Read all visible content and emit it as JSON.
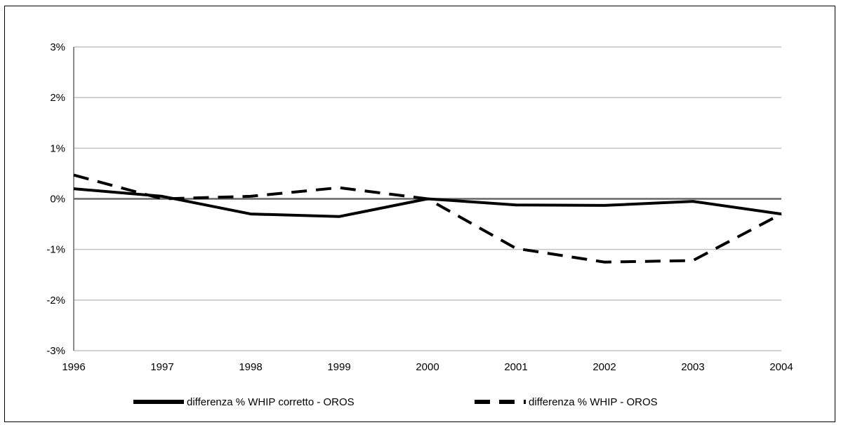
{
  "chart_data": {
    "type": "line",
    "title": "",
    "xlabel": "",
    "ylabel": "",
    "x": [
      "1996",
      "1997",
      "1998",
      "1999",
      "2000",
      "2001",
      "2002",
      "2003",
      "2004"
    ],
    "ylim": [
      -3,
      3
    ],
    "y_ticks": [
      3,
      2,
      1,
      0,
      -1,
      -2,
      -3
    ],
    "y_tick_labels": [
      "3%",
      "2%",
      "1%",
      "0%",
      "-1%",
      "-2%",
      "-3%"
    ],
    "grid": true,
    "legend_position": "bottom",
    "series": [
      {
        "name": "differenza % WHIP corretto - OROS",
        "style": "solid",
        "color": "#000000",
        "values": [
          0.2,
          0.05,
          -0.3,
          -0.35,
          0.0,
          -0.12,
          -0.13,
          -0.05,
          -0.3
        ]
      },
      {
        "name": "differenza % WHIP - OROS",
        "style": "dashed",
        "color": "#000000",
        "values": [
          0.47,
          0.0,
          0.05,
          0.22,
          0.0,
          -0.98,
          -1.25,
          -1.22,
          -0.3
        ]
      }
    ],
    "colors": {
      "grid": "#c0c0c0",
      "axis": "#666666",
      "line": "#000000"
    }
  }
}
